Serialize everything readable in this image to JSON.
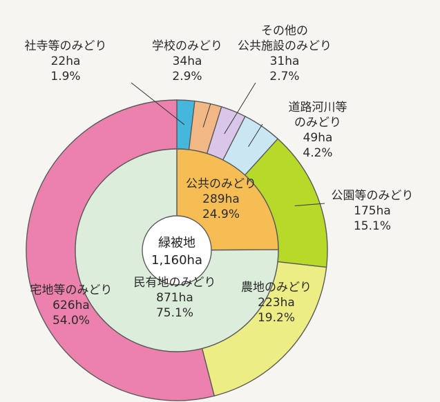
{
  "chart_data": {
    "type": "donut",
    "center": {
      "label": "緑被地",
      "value": "1,160ha"
    },
    "inner_ring": [
      {
        "name": "公共のみどり",
        "area": "289ha",
        "percent": "24.9%",
        "value": 24.9,
        "color": "#f6bd55"
      },
      {
        "name": "民有地のみどり",
        "area": "871ha",
        "percent": "75.1%",
        "value": 75.1,
        "color": "#dceddb"
      }
    ],
    "outer_ring": [
      {
        "name_lines": [
          "社寺等のみどり"
        ],
        "area": "22ha",
        "percent": "1.9%",
        "value": 1.9,
        "color": "#45b7dc"
      },
      {
        "name_lines": [
          "学校のみどり"
        ],
        "area": "34ha",
        "percent": "2.9%",
        "value": 2.9,
        "color": "#f1b785"
      },
      {
        "name_lines": [
          "その他の",
          "公共施設のみどり"
        ],
        "area": "31ha",
        "percent": "2.7%",
        "value": 2.7,
        "color": "#d9c6e8"
      },
      {
        "name_lines": [
          "道路河川等",
          "のみどり"
        ],
        "area": "49ha",
        "percent": "4.2%",
        "value": 4.2,
        "color": "#c9e6f2"
      },
      {
        "name_lines": [
          "公園等のみどり"
        ],
        "area": "175ha",
        "percent": "15.1%",
        "value": 15.1,
        "color": "#b6d92a"
      },
      {
        "name_lines": [
          "農地のみどり"
        ],
        "area": "223ha",
        "percent": "19.2%",
        "value": 19.2,
        "color": "#eded86"
      },
      {
        "name_lines": [
          "宅地等のみどり"
        ],
        "area": "626ha",
        "percent": "54.0%",
        "value": 54.0,
        "color": "#eb81ac"
      }
    ]
  }
}
